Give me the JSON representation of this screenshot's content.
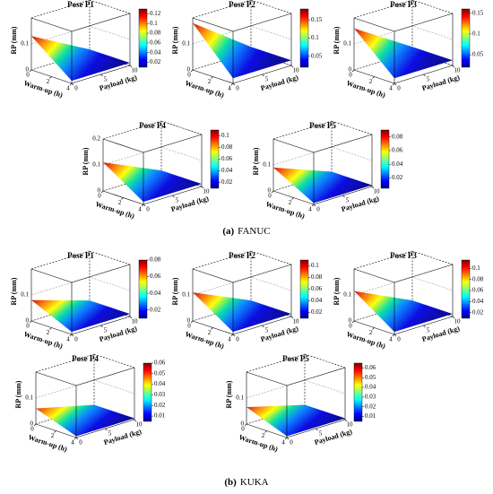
{
  "figure": {
    "zlabel": "RP (mm)",
    "xlabel": "Warm-up (h)",
    "ylabel": "Payload (kg)",
    "xticks": [
      0,
      2,
      4
    ],
    "yticks": [
      0,
      5,
      10
    ],
    "zlim": [
      0,
      0.2
    ],
    "groups": [
      {
        "label": "(a)",
        "caption": "FANUC",
        "panels": [
          {
            "title": "Pose P1",
            "zticks": [
              0,
              0.1
            ],
            "clim": [
              0.01,
              0.13
            ],
            "cticks": [
              0.02,
              0.04,
              0.06,
              0.08,
              0.1,
              0.12
            ]
          },
          {
            "title": "Pose P2",
            "zticks": [
              0,
              0.1
            ],
            "clim": [
              0.02,
              0.18
            ],
            "cticks": [
              0.05,
              0.1,
              0.15
            ]
          },
          {
            "title": "Pose P3",
            "zticks": [
              0,
              0.1
            ],
            "clim": [
              0.02,
              0.16
            ],
            "cticks": [
              0.05,
              0.1,
              0.15
            ]
          },
          {
            "title": "Pose P4",
            "zticks": [
              0,
              0.1,
              0.2
            ],
            "clim": [
              0.01,
              0.11
            ],
            "cticks": [
              0.02,
              0.04,
              0.06,
              0.08,
              0.1
            ]
          },
          {
            "title": "Pose P5",
            "zticks": [
              0,
              0.1
            ],
            "clim": [
              0.005,
              0.09
            ],
            "cticks": [
              0.02,
              0.04,
              0.06,
              0.08
            ]
          }
        ]
      },
      {
        "label": "(b)",
        "caption": "KUKA",
        "panels": [
          {
            "title": "Pose P1",
            "zticks": [
              0,
              0.1
            ],
            "clim": [
              0.01,
              0.08
            ],
            "cticks": [
              0.02,
              0.04,
              0.06,
              0.08
            ]
          },
          {
            "title": "Pose P2",
            "zticks": [
              0,
              0.1
            ],
            "clim": [
              0.01,
              0.11
            ],
            "cticks": [
              0.02,
              0.04,
              0.06,
              0.08,
              0.1
            ]
          },
          {
            "title": "Pose P3",
            "zticks": [
              0,
              0.1
            ],
            "clim": [
              0.01,
              0.115
            ],
            "cticks": [
              0.02,
              0.04,
              0.06,
              0.08,
              0.1
            ]
          },
          {
            "title": "Pose P4",
            "zticks": [
              0,
              0.1
            ],
            "clim": [
              0.005,
              0.06
            ],
            "cticks": [
              0.01,
              0.02,
              0.03,
              0.04,
              0.05,
              0.06
            ]
          },
          {
            "title": "Pose P5",
            "zticks": [
              0,
              0.1
            ],
            "clim": [
              0.005,
              0.065
            ],
            "cticks": [
              0.01,
              0.02,
              0.03,
              0.04,
              0.05,
              0.06
            ]
          }
        ]
      }
    ]
  }
}
